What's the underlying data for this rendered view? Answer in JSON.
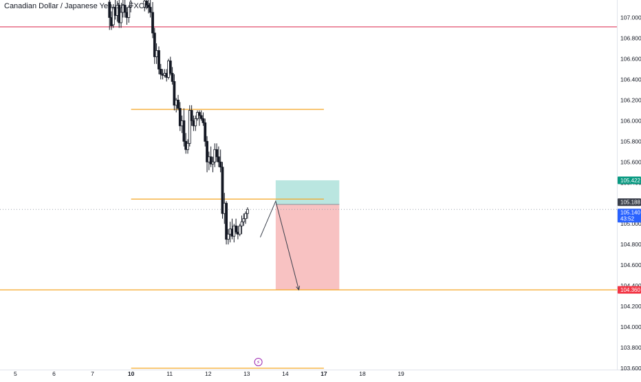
{
  "symbol_title": "Canadian Dollar / Japanese Yen, 1h, FXCM",
  "colors": {
    "background": "#ffffff",
    "candle": "#131722",
    "level_line": "#f5a623",
    "red_line": "#e04a6a",
    "price_line_dotted": "#9aa0ab",
    "target_zone": "#f7b7b7",
    "stop_zone": "#b2e3dd",
    "tag_target": "#f23645",
    "tag_stop": "#089981",
    "tag_current": "#2962ff",
    "tag_current_price": "#3a3f4b",
    "axis_text": "#131722"
  },
  "chart_data": {
    "type": "candlestick",
    "ylim": [
      103.5,
      107.17
    ],
    "xlim": [
      4.6,
      20.6
    ],
    "y_ticks": [
      "103.600",
      "103.800",
      "104.000",
      "104.200",
      "104.400",
      "104.600",
      "104.800",
      "105.000",
      "105.200",
      "105.400",
      "105.600",
      "105.800",
      "106.000",
      "106.200",
      "106.400",
      "106.600",
      "106.800",
      "107.000"
    ],
    "x_ticks": [
      {
        "value": 5,
        "label": "5",
        "bold": false
      },
      {
        "value": 6,
        "label": "6",
        "bold": false
      },
      {
        "value": 7,
        "label": "7",
        "bold": false
      },
      {
        "value": 8,
        "label": "10",
        "bold": true
      },
      {
        "value": 9,
        "label": "11",
        "bold": false
      },
      {
        "value": 10,
        "label": "12",
        "bold": false
      },
      {
        "value": 11,
        "label": "13",
        "bold": false
      },
      {
        "value": 12,
        "label": "14",
        "bold": false
      },
      {
        "value": 13,
        "label": "17",
        "bold": true
      },
      {
        "value": 14,
        "label": "18",
        "bold": false
      },
      {
        "value": 15,
        "label": "19",
        "bold": false
      }
    ],
    "horizontal_levels": [
      {
        "price": 106.91,
        "x_from": 4.6,
        "x_to": 20.6,
        "color": "red"
      },
      {
        "price": 106.11,
        "x_from": 8.0,
        "x_to": 13.0,
        "color": "orange"
      },
      {
        "price": 105.24,
        "x_from": 8.0,
        "x_to": 13.0,
        "color": "orange"
      },
      {
        "price": 104.36,
        "x_from": 4.6,
        "x_to": 20.6,
        "color": "orange"
      },
      {
        "price": 103.6,
        "x_from": 8.0,
        "x_to": 13.0,
        "color": "orange"
      }
    ],
    "current_price_line": 105.14,
    "position": {
      "entry": 105.188,
      "stop": 105.422,
      "target": 104.36,
      "x_from": 11.75,
      "x_to": 13.4
    },
    "projection_path": [
      [
        11.35,
        104.87
      ],
      [
        11.75,
        105.22
      ],
      [
        12.35,
        104.36
      ]
    ],
    "price_tags": [
      {
        "text": "105.422",
        "price": 105.422,
        "kind": "stop"
      },
      {
        "text": "105.188",
        "price": 105.21,
        "kind": "entry"
      },
      {
        "text": "105.140",
        "sub": "43:52",
        "price": 105.11,
        "kind": "current"
      },
      {
        "text": "104.360",
        "price": 104.36,
        "kind": "target"
      }
    ],
    "candles": [
      [
        7.44,
        107.15,
        107.2,
        106.88,
        107.0
      ],
      [
        7.49,
        107.0,
        107.06,
        106.88,
        106.92
      ],
      [
        7.54,
        106.93,
        107.13,
        106.9,
        107.1
      ],
      [
        7.59,
        107.1,
        107.18,
        106.98,
        107.02
      ],
      [
        7.64,
        107.02,
        107.16,
        106.96,
        107.12
      ],
      [
        7.69,
        107.12,
        107.17,
        106.9,
        106.95
      ],
      [
        7.74,
        106.95,
        107.1,
        106.9,
        107.05
      ],
      [
        7.79,
        107.05,
        107.2,
        107.0,
        107.12
      ],
      [
        7.84,
        107.12,
        107.18,
        107.0,
        107.05
      ],
      [
        7.89,
        107.05,
        107.1,
        106.93,
        107.0
      ],
      [
        7.94,
        107.0,
        107.12,
        106.95,
        107.1
      ],
      [
        7.99,
        107.1,
        107.2,
        107.05,
        107.15
      ],
      [
        8.35,
        107.1,
        107.2,
        107.06,
        107.16
      ],
      [
        8.4,
        107.16,
        107.2,
        107.08,
        107.12
      ],
      [
        8.45,
        107.12,
        107.18,
        107.04,
        107.1
      ],
      [
        8.5,
        107.1,
        107.17,
        107.0,
        107.05
      ],
      [
        8.56,
        107.05,
        107.15,
        106.8,
        106.85
      ],
      [
        8.61,
        106.85,
        106.9,
        106.55,
        106.62
      ],
      [
        8.66,
        106.62,
        106.75,
        106.55,
        106.68
      ],
      [
        8.72,
        106.68,
        106.72,
        106.45,
        106.5
      ],
      [
        8.77,
        106.5,
        106.55,
        106.4,
        106.45
      ],
      [
        8.82,
        106.45,
        106.5,
        106.4,
        106.44
      ],
      [
        8.87,
        106.44,
        106.5,
        106.42,
        106.46
      ],
      [
        8.92,
        106.46,
        106.5,
        106.38,
        106.42
      ],
      [
        8.97,
        106.42,
        106.6,
        106.4,
        106.58
      ],
      [
        9.02,
        106.58,
        106.62,
        106.44,
        106.46
      ],
      [
        9.07,
        106.46,
        106.52,
        106.35,
        106.38
      ],
      [
        9.12,
        106.38,
        106.45,
        106.1,
        106.15
      ],
      [
        9.17,
        106.15,
        106.22,
        106.08,
        106.2
      ],
      [
        9.22,
        106.2,
        106.25,
        106.1,
        106.12
      ],
      [
        9.27,
        106.12,
        106.18,
        105.9,
        105.95
      ],
      [
        9.32,
        105.95,
        106.05,
        105.88,
        106.0
      ],
      [
        9.37,
        106.0,
        106.12,
        105.75,
        105.8
      ],
      [
        9.42,
        105.8,
        105.88,
        105.68,
        105.72
      ],
      [
        9.47,
        105.72,
        105.82,
        105.68,
        105.78
      ],
      [
        9.52,
        105.78,
        106.15,
        105.75,
        106.1
      ],
      [
        9.57,
        106.1,
        106.15,
        105.95,
        106.0
      ],
      [
        9.62,
        106.0,
        106.05,
        105.9,
        105.95
      ],
      [
        9.67,
        105.95,
        106.05,
        105.9,
        106.02
      ],
      [
        9.72,
        106.02,
        106.1,
        106.0,
        106.08
      ],
      [
        9.77,
        106.08,
        106.1,
        105.95,
        106.05
      ],
      [
        9.82,
        106.05,
        106.1,
        106.0,
        106.02
      ],
      [
        9.87,
        106.02,
        106.08,
        105.95,
        105.98
      ],
      [
        9.92,
        105.98,
        106.02,
        105.75,
        105.8
      ],
      [
        9.97,
        105.8,
        105.85,
        105.5,
        105.6
      ],
      [
        10.02,
        105.6,
        105.7,
        105.52,
        105.65
      ],
      [
        10.07,
        105.65,
        105.75,
        105.55,
        105.58
      ],
      [
        10.12,
        105.58,
        105.65,
        105.5,
        105.6
      ],
      [
        10.17,
        105.6,
        105.78,
        105.55,
        105.72
      ],
      [
        10.22,
        105.72,
        105.78,
        105.6,
        105.65
      ],
      [
        10.27,
        105.65,
        105.75,
        105.55,
        105.6
      ],
      [
        10.32,
        105.6,
        105.72,
        105.5,
        105.55
      ],
      [
        10.37,
        105.55,
        105.6,
        105.05,
        105.1
      ],
      [
        10.42,
        105.1,
        105.3,
        105.0,
        105.2
      ],
      [
        10.47,
        105.2,
        105.22,
        104.8,
        104.85
      ],
      [
        10.52,
        104.85,
        104.95,
        104.8,
        104.9
      ],
      [
        10.57,
        104.9,
        105.02,
        104.82,
        104.95
      ],
      [
        10.62,
        104.95,
        105.05,
        104.85,
        104.88
      ],
      [
        10.67,
        104.88,
        105.0,
        104.82,
        104.98
      ],
      [
        10.72,
        104.98,
        105.05,
        104.9,
        104.92
      ],
      [
        10.77,
        104.92,
        104.98,
        104.85,
        104.9
      ],
      [
        10.82,
        104.9,
        105.0,
        104.88,
        104.98
      ],
      [
        10.87,
        104.98,
        105.08,
        104.9,
        105.02
      ],
      [
        10.92,
        105.02,
        105.1,
        104.98,
        105.05
      ],
      [
        10.97,
        105.05,
        105.12,
        105.0,
        105.1
      ],
      [
        11.02,
        105.1,
        105.16,
        105.05,
        105.14
      ]
    ]
  },
  "icons": {
    "lightning": "⚡"
  }
}
